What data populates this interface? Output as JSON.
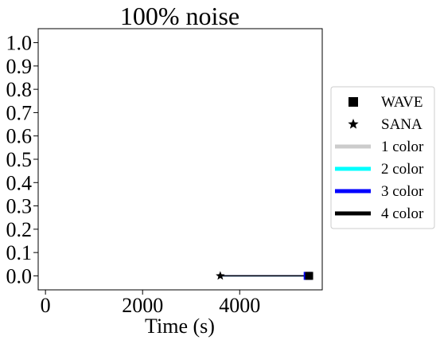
{
  "chart_data": {
    "type": "line",
    "title": "100% noise",
    "xlabel": "Time (s)",
    "ylabel": "",
    "xlim": [
      -150,
      5700
    ],
    "ylim": [
      -0.06,
      1.06
    ],
    "xticks": [
      0,
      2000,
      4000
    ],
    "xtick_labels": [
      "0",
      "2000",
      "4000"
    ],
    "yticks": [
      0.0,
      0.1,
      0.2,
      0.3,
      0.4,
      0.5,
      0.6,
      0.7,
      0.8,
      0.9,
      1.0
    ],
    "ytick_labels": [
      "0.0",
      "0.1",
      "0.2",
      "0.3",
      "0.4",
      "0.5",
      "0.6",
      "0.7",
      "0.8",
      "0.9",
      "1.0"
    ],
    "grid": false,
    "legend_position": "outside-right",
    "series": [
      {
        "name": "1 color",
        "color": "#cccccc",
        "points": [
          {
            "x": 3600,
            "y": 0.0
          },
          {
            "x": 5400,
            "y": 0.0
          }
        ]
      },
      {
        "name": "2 color",
        "color": "#00ffff",
        "points": [
          {
            "x": 3600,
            "y": 0.0
          },
          {
            "x": 5400,
            "y": 0.0
          }
        ]
      },
      {
        "name": "3 color",
        "color": "#0000ff",
        "points": [
          {
            "x": 3600,
            "y": 0.0
          },
          {
            "x": 5400,
            "y": 0.0
          }
        ]
      },
      {
        "name": "4 color",
        "color": "#000000",
        "points": [
          {
            "x": 3600,
            "y": 0.0
          },
          {
            "x": 5430,
            "y": 0.0
          }
        ]
      }
    ],
    "markers": [
      {
        "method": "SANA",
        "shape": "star",
        "x": 3600,
        "y": 0.0
      },
      {
        "method": "WAVE",
        "shape": "square",
        "x": 5400,
        "y": 0.0,
        "color": "#0000ff"
      },
      {
        "method": "WAVE",
        "shape": "square",
        "x": 5430,
        "y": 0.0,
        "color": "#000000"
      }
    ],
    "legend": [
      {
        "label": "WAVE",
        "kind": "marker",
        "shape": "square",
        "color": "#000000"
      },
      {
        "label": "SANA",
        "kind": "marker",
        "shape": "star",
        "color": "#000000"
      },
      {
        "label": "1 color",
        "kind": "line",
        "color": "#cccccc"
      },
      {
        "label": "2 color",
        "kind": "line",
        "color": "#00ffff"
      },
      {
        "label": "3 color",
        "kind": "line",
        "color": "#0000ff"
      },
      {
        "label": "4 color",
        "kind": "line",
        "color": "#000000"
      }
    ]
  }
}
